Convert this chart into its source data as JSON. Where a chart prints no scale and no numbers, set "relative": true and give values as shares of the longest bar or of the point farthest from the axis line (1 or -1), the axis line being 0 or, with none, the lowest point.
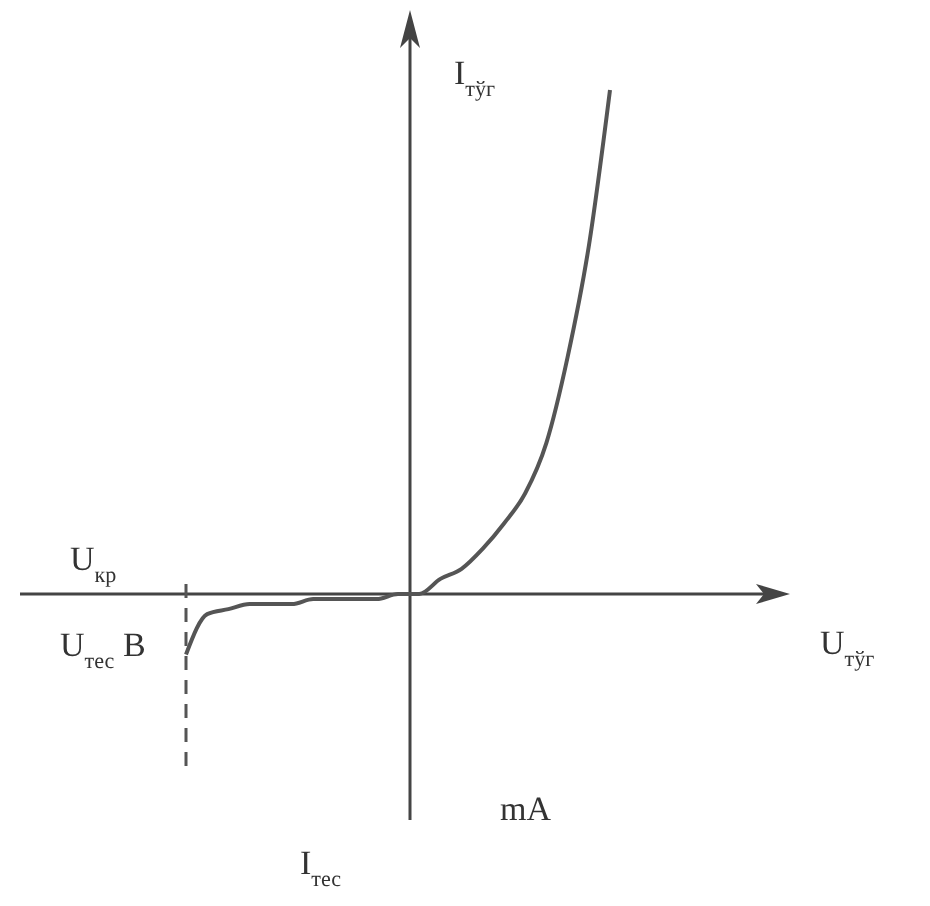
{
  "chart_data": {
    "type": "line",
    "relative": true,
    "ylabel": "I$_{тўг}$",
    "categories": [
      null,
      null,
      null,
      null,
      null,
      null,
      null,
      null,
      null,
      null,
      null,
      null,
      null,
      null,
      null,
      null,
      null,
      null,
      null,
      null,
      null
    ],
    "series": [
      {
        "color": "#555555",
        "values": [
          -0.12,
          -0.04,
          -0.03,
          -0.02,
          -0.02,
          -0.02,
          -0.01,
          -0.01,
          -0.01,
          -0.01,
          0,
          0,
          0.03,
          0.05,
          0.09,
          0.14,
          0.2,
          0.3,
          0.47,
          0.69,
          1
        ]
      }
    ],
    "annotations": [
      "U$_{кр}$",
      "U$_{тес}$ B",
      "mA",
      "I$_{тес}$",
      "U$_{тўг}$"
    ],
    "marker": "none",
    "line_style": "solid"
  }
}
